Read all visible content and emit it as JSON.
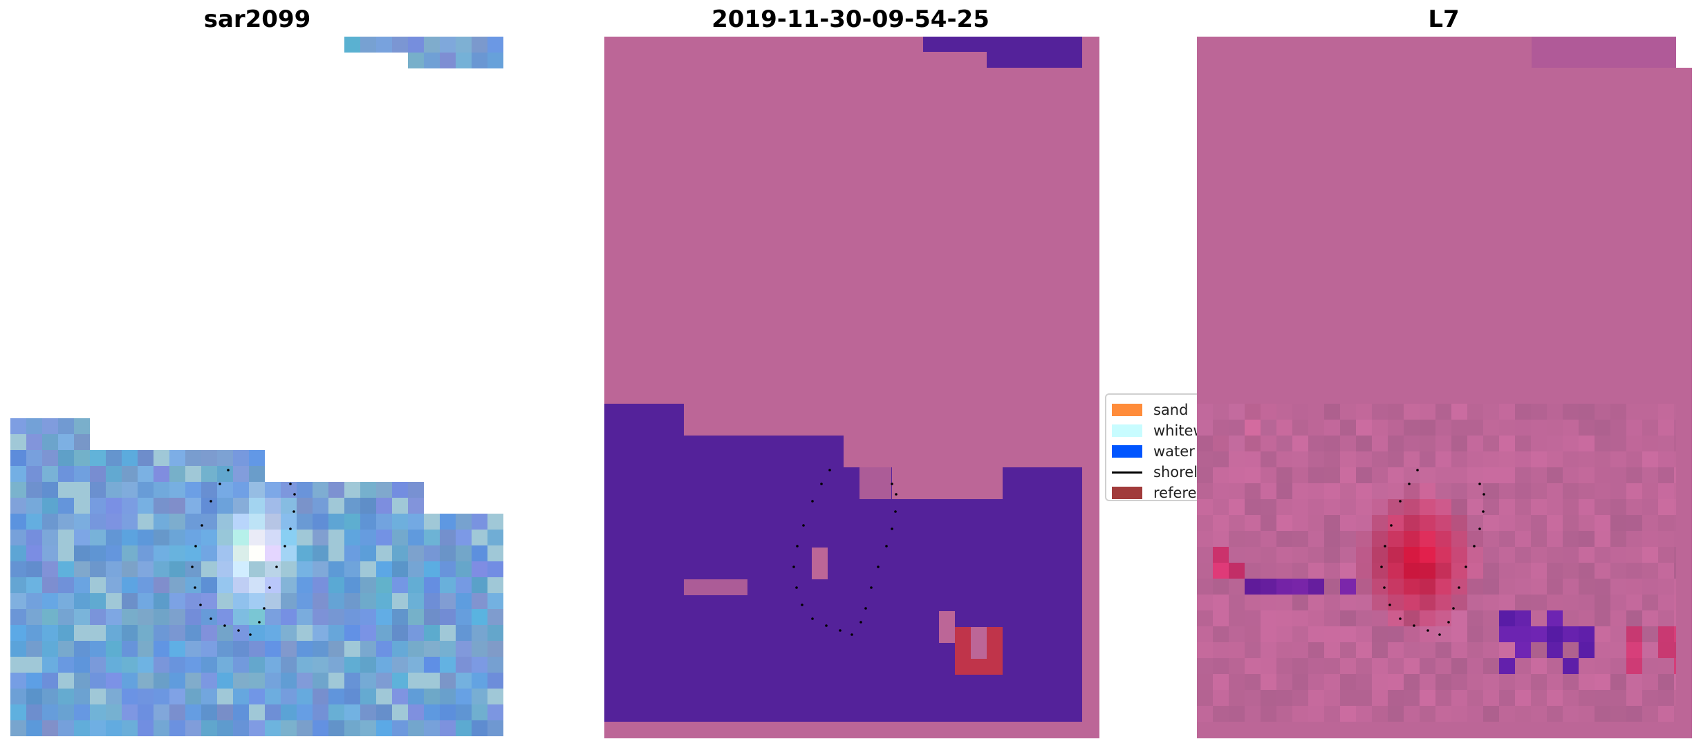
{
  "panels": [
    {
      "title": "sar2099"
    },
    {
      "title": "2019-11-30-09-54-25"
    },
    {
      "title": "L7"
    }
  ],
  "legend": {
    "items": [
      {
        "label": "sand",
        "color": "#ff8c3a",
        "kind": "patch"
      },
      {
        "label": "whitewater",
        "color": "#c8fcff",
        "kind": "patch"
      },
      {
        "label": "water",
        "color": "#0055ff",
        "kind": "patch"
      },
      {
        "label": "shoreline",
        "color": "#000000",
        "kind": "line"
      },
      {
        "label": "reference shoreline",
        "color": "#a13b3b",
        "kind": "patch"
      }
    ]
  },
  "colors": {
    "pink_class": "#bc6697",
    "purple_class": "#54229a",
    "red_class": "#c0344a",
    "sar_blue": "#5b8fcf"
  }
}
